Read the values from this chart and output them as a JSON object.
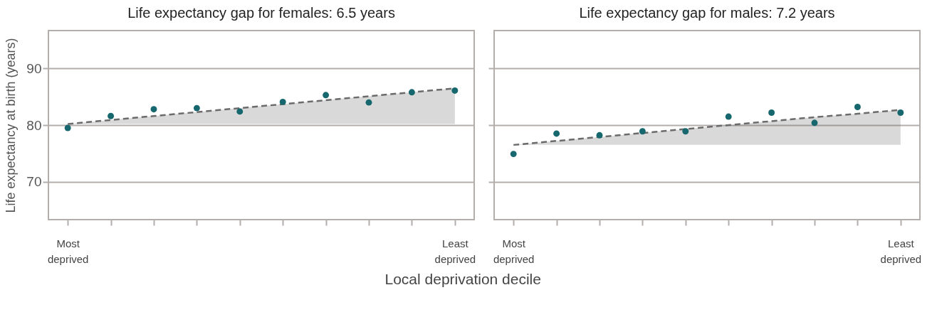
{
  "chart_data": [
    {
      "type": "scatter",
      "title": "Life expectancy gap for females: 6.5 years",
      "xlabel": "Local deprivation decile",
      "ylabel": "Life expectancy at birth (years)",
      "categories": [
        "Most deprived",
        null,
        null,
        null,
        null,
        null,
        null,
        null,
        null,
        "Least deprived"
      ],
      "ylim": [
        63.3,
        96.7
      ],
      "yticks": [
        70,
        80,
        90
      ],
      "grid": "y",
      "series": [
        {
          "type": "line",
          "values": [
            80.2,
            80.9,
            81.6,
            82.3,
            83.0,
            83.7,
            84.4,
            85.1,
            85.8,
            86.5
          ],
          "lower": [
            80.2,
            80.2,
            80.2,
            80.2,
            80.2,
            80.2,
            80.2,
            80.2,
            80.2,
            80.2
          ],
          "upper": [
            80.2,
            80.9,
            81.6,
            82.3,
            83.0,
            83.7,
            84.4,
            85.1,
            85.8,
            86.5
          ],
          "color": "#6b6b6b",
          "line_style": "dashed"
        },
        {
          "type": "scatter",
          "marker": "circle",
          "color": "#16686e",
          "values": [
            79.5,
            81.6,
            82.8,
            83.0,
            82.4,
            84.1,
            85.3,
            84.0,
            85.8,
            86.1
          ]
        }
      ]
    },
    {
      "type": "scatter",
      "title": "Life expectancy gap for males: 7.2 years",
      "tick_labels": "x",
      "categories": [
        "Most deprived",
        null,
        null,
        null,
        null,
        null,
        null,
        null,
        null,
        "Least deprived"
      ],
      "ylim": [
        63.3,
        96.7
      ],
      "yticks": [
        70,
        80,
        90
      ],
      "grid": "y",
      "series": [
        {
          "type": "line",
          "values": [
            76.5,
            77.2,
            77.9,
            78.6,
            79.3,
            80.0,
            80.7,
            81.4,
            82.0,
            82.7
          ],
          "lower": [
            76.5,
            76.5,
            76.5,
            76.5,
            76.5,
            76.5,
            76.5,
            76.5,
            76.5,
            76.5
          ],
          "upper": [
            76.5,
            77.2,
            77.9,
            78.6,
            79.3,
            80.0,
            80.7,
            81.4,
            82.0,
            82.7
          ],
          "color": "#6b6b6b",
          "line_style": "dashed"
        },
        {
          "type": "scatter",
          "marker": "circle",
          "color": "#16686e",
          "values": [
            74.9,
            78.5,
            78.2,
            78.9,
            78.9,
            81.5,
            82.2,
            80.4,
            83.2,
            82.2
          ]
        }
      ]
    }
  ]
}
